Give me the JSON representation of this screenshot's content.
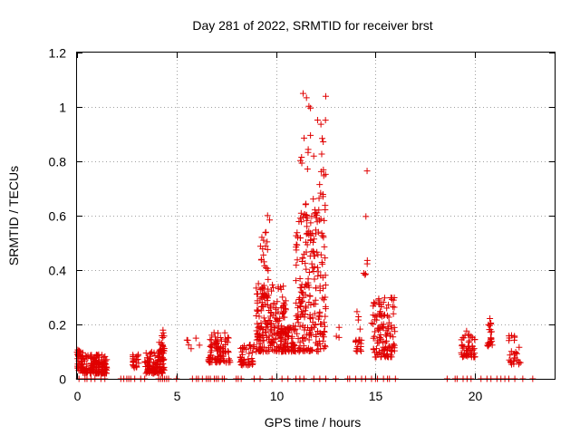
{
  "chart_data": {
    "type": "scatter",
    "title": "Day 281 of 2022, SRMTID for receiver brst",
    "xlabel": "GPS time / hours",
    "ylabel": "SRMTID / TECUs",
    "xlim": [
      0,
      24
    ],
    "ylim": [
      0,
      1.2
    ],
    "x_ticks": [
      0,
      5,
      10,
      15,
      20
    ],
    "y_ticks": [
      0,
      0.2,
      0.4,
      0.6,
      0.8,
      1,
      1.2
    ],
    "x_tick_labels": [
      "0",
      "5",
      "10",
      "15",
      "20"
    ],
    "y_tick_labels": [
      "0",
      "0.2",
      "0.4",
      "0.6",
      "0.8",
      "1",
      "1.2"
    ],
    "grid": true,
    "marker": "+",
    "series": [
      {
        "name": "SRMTID",
        "color": "#e00000",
        "clusters": [
          {
            "x0": 0.0,
            "x1": 0.3,
            "ymin": 0.03,
            "ymax": 0.11,
            "n": 40
          },
          {
            "x0": 0.3,
            "x1": 1.5,
            "ymin": 0.02,
            "ymax": 0.09,
            "n": 150
          },
          {
            "x0": 2.8,
            "x1": 3.1,
            "ymin": 0.04,
            "ymax": 0.09,
            "n": 25
          },
          {
            "x0": 3.4,
            "x1": 4.4,
            "ymin": 0.02,
            "ymax": 0.1,
            "n": 110
          },
          {
            "x0": 4.1,
            "x1": 4.4,
            "ymin": 0.1,
            "ymax": 0.18,
            "n": 20
          },
          {
            "x0": 5.5,
            "x1": 6.2,
            "ymin": 0.1,
            "ymax": 0.15,
            "n": 6
          },
          {
            "x0": 6.6,
            "x1": 7.7,
            "ymin": 0.06,
            "ymax": 0.17,
            "n": 90
          },
          {
            "x0": 8.2,
            "x1": 8.9,
            "ymin": 0.05,
            "ymax": 0.13,
            "n": 45
          },
          {
            "x0": 9.0,
            "x1": 10.5,
            "ymin": 0.1,
            "ymax": 0.35,
            "n": 200
          },
          {
            "x0": 9.1,
            "x1": 9.7,
            "ymin": 0.3,
            "ymax": 0.62,
            "n": 30
          },
          {
            "x0": 10.2,
            "x1": 11.0,
            "ymin": 0.1,
            "ymax": 0.2,
            "n": 60
          },
          {
            "x0": 11.0,
            "x1": 12.5,
            "ymin": 0.1,
            "ymax": 0.6,
            "n": 220
          },
          {
            "x0": 11.2,
            "x1": 12.5,
            "ymin": 0.6,
            "ymax": 1.07,
            "n": 45
          },
          {
            "x0": 13.0,
            "x1": 13.2,
            "ymin": 0.15,
            "ymax": 0.19,
            "n": 3
          },
          {
            "x0": 14.0,
            "x1": 14.3,
            "ymin": 0.1,
            "ymax": 0.25,
            "n": 20
          },
          {
            "x0": 14.4,
            "x1": 14.6,
            "ymin": 0.38,
            "ymax": 0.77,
            "n": 7
          },
          {
            "x0": 14.8,
            "x1": 16.0,
            "ymin": 0.08,
            "ymax": 0.3,
            "n": 120
          },
          {
            "x0": 19.3,
            "x1": 20.0,
            "ymin": 0.08,
            "ymax": 0.19,
            "n": 50
          },
          {
            "x0": 20.6,
            "x1": 20.9,
            "ymin": 0.12,
            "ymax": 0.23,
            "n": 25
          },
          {
            "x0": 21.7,
            "x1": 22.3,
            "ymin": 0.05,
            "ymax": 0.17,
            "n": 30
          }
        ],
        "zero_points": [
          0.1,
          0.4,
          0.5,
          0.7,
          0.9,
          1.2,
          1.4,
          2.2,
          2.35,
          2.5,
          2.6,
          2.7,
          2.9,
          3.2,
          3.4,
          4.1,
          4.2,
          4.3,
          4.4,
          4.5,
          4.6,
          5.0,
          5.8,
          6.0,
          6.1,
          6.3,
          6.5,
          6.6,
          6.7,
          6.9,
          7.0,
          7.1,
          7.3,
          7.4,
          8.0,
          8.1,
          8.25,
          8.9,
          9.2,
          9.8,
          10.3,
          10.6,
          11.0,
          11.2,
          11.4,
          11.9,
          12.2,
          12.5,
          13.0,
          13.6,
          13.7,
          14.0,
          14.3,
          14.5,
          14.8,
          15.0,
          15.1,
          15.4,
          15.6,
          15.7,
          16.0,
          18.6,
          19.0,
          19.1,
          19.4,
          19.6,
          19.8,
          20.3,
          20.6,
          20.8,
          21.1,
          21.3,
          21.5,
          21.7,
          22.0,
          22.4,
          22.9
        ]
      }
    ]
  }
}
